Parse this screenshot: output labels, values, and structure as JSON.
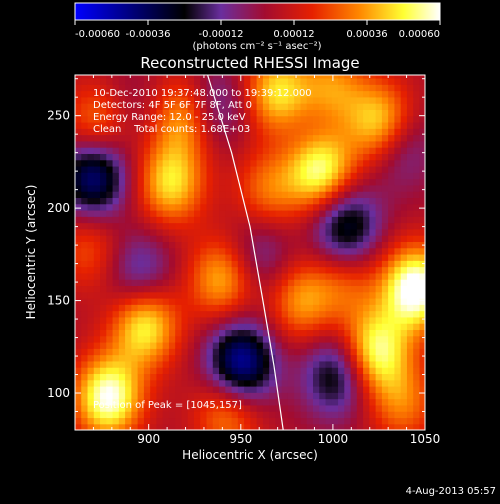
{
  "colorbar": {
    "ticks": [
      "-0.00060",
      "-0.00036",
      "-0.00012",
      "0.00012",
      "0.00036",
      "0.00060"
    ],
    "tick_values": [
      -0.0006,
      -0.00036,
      -0.00012,
      0.00012,
      0.00036,
      0.0006
    ],
    "range": [
      -0.0006,
      0.0006
    ],
    "units": "(photons cm⁻² s⁻¹ asec⁻²)",
    "colors": [
      "#0000ff",
      "#000000",
      "#6a2e9e",
      "#a30c30",
      "#e62000",
      "#ff8800",
      "#ffff33",
      "#ffffff"
    ]
  },
  "chart_data": {
    "type": "heatmap",
    "title": "Reconstructed RHESSI Image",
    "xlabel": "Heliocentric X (arcsec)",
    "ylabel": "Heliocentric Y (arcsec)",
    "xlim": [
      860,
      1050
    ],
    "ylim": [
      80,
      272
    ],
    "x_ticks": [
      900,
      950,
      1000,
      1050
    ],
    "y_ticks": [
      100,
      150,
      200,
      250
    ],
    "x_tick_labels": [
      "900",
      "950",
      "1000",
      "1050"
    ],
    "y_tick_labels": [
      "100",
      "150",
      "200",
      "250"
    ],
    "annotations": [
      "10-Dec-2010 19:37:48.000 to 19:39:12.000",
      "Detectors: 4F 5F 6F 7F 8F, Att 0",
      "Energy Range: 12.0 - 25.0 keV",
      "Clean    Total counts: 1.68E+03"
    ],
    "peak_label": "Position of Peak = [1045,157]",
    "peak": [
      1045,
      157
    ],
    "limb_curve": [
      [
        932,
        272
      ],
      [
        945,
        230
      ],
      [
        955,
        190
      ],
      [
        962,
        150
      ],
      [
        968,
        115
      ],
      [
        973,
        80
      ]
    ],
    "blobs": [
      {
        "x": 950,
        "y": 116,
        "v": -0.00055
      },
      {
        "x": 870,
        "y": 218,
        "v": -0.0005
      },
      {
        "x": 1007,
        "y": 190,
        "v": -0.0004
      },
      {
        "x": 1002,
        "y": 110,
        "v": -0.00035
      },
      {
        "x": 895,
        "y": 165,
        "v": -0.00025
      },
      {
        "x": 1035,
        "y": 235,
        "v": -0.0003
      },
      {
        "x": 960,
        "y": 175,
        "v": -0.0002
      },
      {
        "x": 935,
        "y": 255,
        "v": -0.00025
      },
      {
        "x": 990,
        "y": 235,
        "v": -0.00015
      },
      {
        "x": 890,
        "y": 255,
        "v": -0.0001
      },
      {
        "x": 1045,
        "y": 157,
        "v": 0.0006
      },
      {
        "x": 993,
        "y": 222,
        "v": 0.00058
      },
      {
        "x": 878,
        "y": 98,
        "v": 0.00055
      },
      {
        "x": 1027,
        "y": 245,
        "v": 0.0005
      },
      {
        "x": 898,
        "y": 137,
        "v": 0.00045
      },
      {
        "x": 1023,
        "y": 123,
        "v": 0.00048
      },
      {
        "x": 912,
        "y": 214,
        "v": 0.0004
      },
      {
        "x": 940,
        "y": 162,
        "v": 0.00035
      },
      {
        "x": 970,
        "y": 263,
        "v": 0.0004
      },
      {
        "x": 983,
        "y": 150,
        "v": 0.0003
      },
      {
        "x": 868,
        "y": 178,
        "v": 0.0002
      },
      {
        "x": 943,
        "y": 90,
        "v": 0.0003
      },
      {
        "x": 1038,
        "y": 95,
        "v": 0.00025
      },
      {
        "x": 920,
        "y": 250,
        "v": 0.00035
      },
      {
        "x": 965,
        "y": 210,
        "v": 0.00025
      },
      {
        "x": 1007,
        "y": 160,
        "v": 0.0002
      },
      {
        "x": 872,
        "y": 245,
        "v": 0.0003
      },
      {
        "x": 1000,
        "y": 265,
        "v": 0.00028
      }
    ]
  },
  "footer": {
    "date": "4-Aug-2013 05:57"
  }
}
